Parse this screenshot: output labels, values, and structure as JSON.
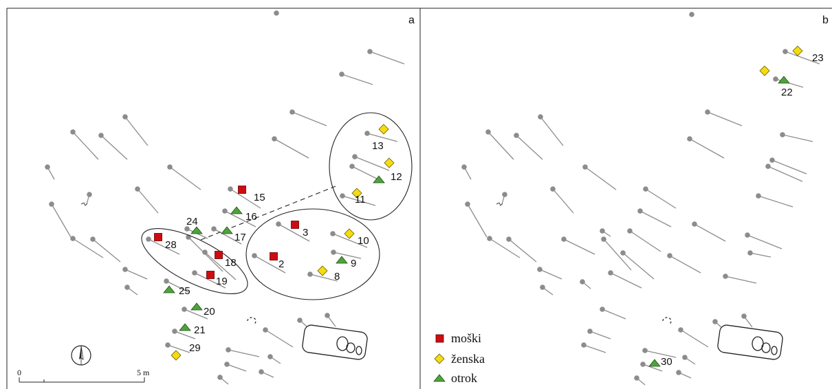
{
  "panels": {
    "a": {
      "letter": "a"
    },
    "b": {
      "letter": "b"
    }
  },
  "legend": {
    "male": {
      "label": "moški",
      "color": "#d10a10"
    },
    "female": {
      "label": "ženska",
      "color": "#f5dc12"
    },
    "child": {
      "label": "otrok",
      "color": "#4ea33b"
    }
  },
  "scale": {
    "start": "0",
    "end": "5 m"
  },
  "burial_numbers": {
    "a": [
      "13",
      "12",
      "11",
      "15",
      "16",
      "24",
      "17",
      "3",
      "10",
      "28",
      "18",
      "2",
      "9",
      "19",
      "8",
      "25",
      "20",
      "21",
      "29"
    ],
    "b": [
      "23",
      "22",
      "30"
    ]
  },
  "colors": {
    "grave_marker": "#8c8c8c",
    "outline": "#222222"
  }
}
